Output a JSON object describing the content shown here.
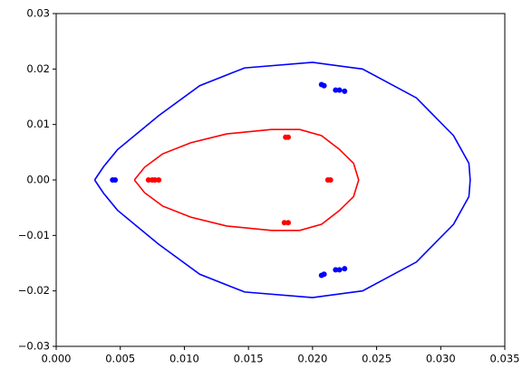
{
  "chart_data": {
    "type": "scatter",
    "xlim": [
      0,
      0.035
    ],
    "ylim": [
      -0.03,
      0.03
    ],
    "xticks": [
      {
        "value": 0,
        "label": "0.000"
      },
      {
        "value": 0.005,
        "label": "0.005"
      },
      {
        "value": 0.01,
        "label": "0.010"
      },
      {
        "value": 0.015,
        "label": "0.015"
      },
      {
        "value": 0.02,
        "label": "0.020"
      },
      {
        "value": 0.025,
        "label": "0.025"
      },
      {
        "value": 0.03,
        "label": "0.030"
      },
      {
        "value": 0.035,
        "label": "0.035"
      }
    ],
    "yticks": [
      {
        "value": -0.03,
        "label": "−0.03"
      },
      {
        "value": -0.02,
        "label": "−0.02"
      },
      {
        "value": -0.01,
        "label": "−0.01"
      },
      {
        "value": 0,
        "label": "0.00"
      },
      {
        "value": 0.01,
        "label": "0.01"
      },
      {
        "value": 0.02,
        "label": "0.02"
      },
      {
        "value": 0.03,
        "label": "0.03"
      }
    ],
    "series": [
      {
        "color": "#0000ff",
        "mode": "line",
        "x": [
          0.003,
          0.0037,
          0.0048,
          0.008,
          0.0112,
          0.0147,
          0.02,
          0.0239,
          0.0281,
          0.031,
          0.0322,
          0.0323,
          0.0322,
          0.031,
          0.0281,
          0.0239,
          0.02,
          0.0147,
          0.0112,
          0.008,
          0.0048,
          0.0037,
          0.003
        ],
        "y": [
          0,
          0.0024,
          0.0055,
          0.0116,
          0.017,
          0.0202,
          0.0212,
          0.02,
          0.0148,
          0.008,
          0.003,
          0,
          -0.003,
          -0.008,
          -0.0148,
          -0.02,
          -0.0212,
          -0.0202,
          -0.017,
          -0.0116,
          -0.0055,
          -0.0024,
          0
        ]
      },
      {
        "color": "#ff0000",
        "mode": "line",
        "x": [
          0.0061,
          0.0069,
          0.0083,
          0.0105,
          0.0133,
          0.0168,
          0.019,
          0.0207,
          0.0221,
          0.0232,
          0.0236,
          0.0232,
          0.0221,
          0.0207,
          0.019,
          0.0168,
          0.0133,
          0.0105,
          0.0083,
          0.0069,
          0.0061
        ],
        "y": [
          0,
          0.0023,
          0.0047,
          0.0067,
          0.0083,
          0.0091,
          0.0091,
          0.008,
          0.0055,
          0.003,
          0,
          -0.003,
          -0.0055,
          -0.008,
          -0.0091,
          -0.0091,
          -0.0083,
          -0.0067,
          -0.0047,
          -0.0023,
          0
        ]
      },
      {
        "color": "#0000ff",
        "mode": "markers",
        "x": [
          0.0044,
          0.0046,
          0.0207,
          0.0209,
          0.0218,
          0.0221,
          0.0225,
          0.0207,
          0.0209,
          0.0218,
          0.0221,
          0.0225
        ],
        "y": [
          0,
          0,
          0.0172,
          0.017,
          0.0162,
          0.0162,
          0.016,
          -0.0172,
          -0.017,
          -0.0162,
          -0.0162,
          -0.016
        ]
      },
      {
        "color": "#ff0000",
        "mode": "markers",
        "x": [
          0.0072,
          0.0075,
          0.0077,
          0.008,
          0.0179,
          0.0181,
          0.0178,
          0.0181,
          0.0212,
          0.0214
        ],
        "y": [
          0,
          0,
          0,
          0,
          0.0077,
          0.0077,
          -0.0077,
          -0.0077,
          0,
          0
        ]
      }
    ]
  }
}
